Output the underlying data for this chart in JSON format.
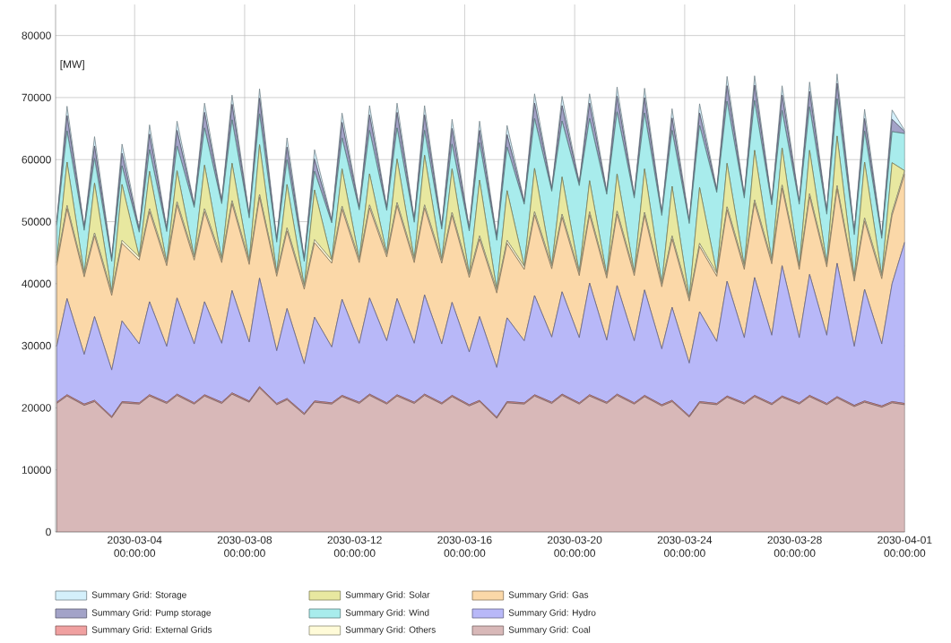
{
  "chart_data": {
    "type": "area",
    "stacked": true,
    "ylabel": "[MW]",
    "grid": true,
    "legend": "bottom",
    "xlim": [
      "2030-03-01T03:00",
      "2030-04-01T00:00"
    ],
    "ylim": [
      0,
      85000
    ],
    "yticks": [
      0,
      10000,
      20000,
      30000,
      40000,
      50000,
      60000,
      70000,
      80000
    ],
    "xticks": [
      {
        "value": "2030-03-04",
        "label": "2030-03-04 00:00:00"
      },
      {
        "value": "2030-03-08",
        "label": "2030-03-08 00:00:00"
      },
      {
        "value": "2030-03-12",
        "label": "2030-03-12 00:00:00"
      },
      {
        "value": "2030-03-16",
        "label": "2030-03-16 00:00:00"
      },
      {
        "value": "2030-03-20",
        "label": "2030-03-20 00:00:00"
      },
      {
        "value": "2030-03-24",
        "label": "2030-03-24 00:00:00"
      },
      {
        "value": "2030-03-28",
        "label": "2030-03-28 00:00:00"
      },
      {
        "value": "2030-04-01",
        "label": "2030-04-01 00:00:00"
      }
    ],
    "x": [
      "2030-03-01T04:00",
      "2030-03-01T13:00",
      "2030-03-02T04:00",
      "2030-03-02T13:00",
      "2030-03-03T04:00",
      "2030-03-03T13:00",
      "2030-03-04T04:00",
      "2030-03-04T13:00",
      "2030-03-05T04:00",
      "2030-03-05T13:00",
      "2030-03-06T04:00",
      "2030-03-06T13:00",
      "2030-03-07T04:00",
      "2030-03-07T13:00",
      "2030-03-08T04:00",
      "2030-03-08T13:00",
      "2030-03-09T04:00",
      "2030-03-09T13:00",
      "2030-03-10T04:00",
      "2030-03-10T13:00",
      "2030-03-11T04:00",
      "2030-03-11T13:00",
      "2030-03-12T04:00",
      "2030-03-12T13:00",
      "2030-03-13T04:00",
      "2030-03-13T13:00",
      "2030-03-14T04:00",
      "2030-03-14T13:00",
      "2030-03-15T04:00",
      "2030-03-15T13:00",
      "2030-03-16T04:00",
      "2030-03-16T13:00",
      "2030-03-17T04:00",
      "2030-03-17T13:00",
      "2030-03-18T04:00",
      "2030-03-18T13:00",
      "2030-03-19T04:00",
      "2030-03-19T13:00",
      "2030-03-20T04:00",
      "2030-03-20T13:00",
      "2030-03-21T04:00",
      "2030-03-21T13:00",
      "2030-03-22T04:00",
      "2030-03-22T13:00",
      "2030-03-23T04:00",
      "2030-03-23T13:00",
      "2030-03-24T04:00",
      "2030-03-24T13:00",
      "2030-03-25T04:00",
      "2030-03-25T13:00",
      "2030-03-26T04:00",
      "2030-03-26T13:00",
      "2030-03-27T04:00",
      "2030-03-27T13:00",
      "2030-03-28T04:00",
      "2030-03-28T13:00",
      "2030-03-29T04:00",
      "2030-03-29T13:00",
      "2030-03-30T04:00",
      "2030-03-30T13:00",
      "2030-03-31T04:00",
      "2030-03-31T13:00",
      "2030-04-01T00:00"
    ],
    "series": [
      {
        "name": "Summary Grid: Coal",
        "color": "#d8b8b8",
        "values": [
          20700,
          21900,
          20400,
          21000,
          18400,
          20800,
          20600,
          21900,
          20700,
          22000,
          20600,
          21900,
          20700,
          22200,
          20900,
          23200,
          20500,
          21300,
          18900,
          20900,
          20600,
          21800,
          20700,
          22000,
          20600,
          21900,
          20700,
          22000,
          20600,
          21800,
          20300,
          21000,
          18300,
          20800,
          20600,
          21900,
          20700,
          22000,
          20600,
          21900,
          20700,
          22000,
          20600,
          21800,
          20300,
          21000,
          18500,
          20800,
          20500,
          21700,
          20600,
          21800,
          20500,
          21700,
          20600,
          21800,
          20500,
          21600,
          20200,
          20900,
          20100,
          20800,
          20500
        ]
      },
      {
        "name": "Summary Grid: External Grids",
        "color": "#f0a0a0",
        "values": [
          200,
          200,
          200,
          200,
          200,
          200,
          200,
          200,
          200,
          200,
          200,
          200,
          200,
          200,
          200,
          200,
          200,
          200,
          200,
          200,
          200,
          200,
          200,
          200,
          200,
          200,
          200,
          200,
          200,
          200,
          200,
          200,
          200,
          200,
          200,
          200,
          200,
          200,
          200,
          200,
          200,
          200,
          200,
          200,
          200,
          200,
          200,
          200,
          200,
          200,
          200,
          200,
          200,
          200,
          200,
          200,
          200,
          200,
          200,
          200,
          200,
          200,
          200
        ]
      },
      {
        "name": "Summary Grid: Hydro",
        "color": "#b8b8f8",
        "values": [
          9000,
          15500,
          8000,
          13500,
          7500,
          13000,
          9500,
          15000,
          9000,
          15500,
          9500,
          15000,
          9500,
          16500,
          9500,
          17500,
          8500,
          14500,
          8000,
          13500,
          9000,
          15500,
          9500,
          15500,
          10000,
          15500,
          9500,
          16000,
          9500,
          15000,
          8500,
          13500,
          8000,
          13500,
          10000,
          16000,
          10500,
          16500,
          10500,
          18000,
          10000,
          17500,
          10000,
          17000,
          9000,
          15000,
          8500,
          14500,
          10000,
          18500,
          10500,
          19000,
          11000,
          21000,
          10500,
          19500,
          11000,
          21500,
          9500,
          18000,
          10000,
          19000,
          26000
        ]
      },
      {
        "name": "Summary Grid: Gas",
        "color": "#fbd8a8",
        "values": [
          13000,
          14500,
          12500,
          13000,
          12000,
          12500,
          13500,
          14500,
          13000,
          15000,
          13500,
          14500,
          13000,
          14000,
          12500,
          13000,
          12000,
          12500,
          12000,
          12000,
          13500,
          14500,
          13000,
          14500,
          13500,
          15000,
          13000,
          14000,
          13000,
          14000,
          12000,
          12500,
          12000,
          12000,
          11500,
          13000,
          11000,
          12000,
          10000,
          11000,
          10000,
          11500,
          10500,
          12000,
          10000,
          11000,
          10000,
          10500,
          10500,
          11500,
          11000,
          12000,
          11500,
          12500,
          11000,
          12500,
          11000,
          12000,
          10500,
          11000,
          10500,
          11000,
          11000
        ]
      },
      {
        "name": "Summary Grid: Others",
        "color": "#fffbd8",
        "values": [
          500,
          500,
          500,
          500,
          500,
          500,
          500,
          500,
          500,
          500,
          500,
          500,
          500,
          500,
          500,
          500,
          500,
          500,
          500,
          500,
          500,
          500,
          500,
          500,
          500,
          500,
          500,
          500,
          500,
          500,
          500,
          500,
          500,
          500,
          500,
          500,
          500,
          500,
          500,
          500,
          500,
          500,
          500,
          500,
          500,
          500,
          500,
          500,
          500,
          500,
          500,
          500,
          500,
          500,
          500,
          500,
          500,
          500,
          500,
          500,
          500,
          500,
          500
        ]
      },
      {
        "name": "Summary Grid: Solar",
        "color": "#e8e8a0",
        "values": [
          0,
          7000,
          0,
          8000,
          0,
          9000,
          0,
          6000,
          0,
          5000,
          0,
          7000,
          0,
          6000,
          0,
          8000,
          0,
          7000,
          0,
          8000,
          0,
          6000,
          0,
          5000,
          0,
          7000,
          0,
          8000,
          0,
          7000,
          0,
          9000,
          0,
          8000,
          0,
          7000,
          0,
          6000,
          0,
          5000,
          0,
          6000,
          0,
          7000,
          0,
          8000,
          0,
          9000,
          0,
          7000,
          0,
          8000,
          0,
          6000,
          0,
          7000,
          0,
          8000,
          0,
          9000,
          0,
          8000,
          0
        ]
      },
      {
        "name": "Summary Grid: Wind",
        "color": "#a8ecec",
        "values": [
          6000,
          5000,
          7000,
          4000,
          5000,
          3000,
          4000,
          3500,
          5000,
          4000,
          8000,
          6000,
          9000,
          7000,
          7000,
          5000,
          5000,
          4000,
          4000,
          3000,
          6000,
          5000,
          8000,
          7000,
          7000,
          5000,
          6000,
          4000,
          5000,
          4000,
          7000,
          6000,
          8000,
          7000,
          10000,
          8000,
          12000,
          9000,
          14000,
          10000,
          13000,
          10000,
          12000,
          9000,
          11000,
          9000,
          12000,
          10000,
          13000,
          10000,
          11000,
          8000,
          9000,
          6000,
          10000,
          7000,
          8000,
          6000,
          7000,
          5000,
          6000,
          5000,
          6000
        ]
      },
      {
        "name": "Summary Grid: Pump storage",
        "color": "#a3a3c8",
        "values": [
          300,
          2500,
          300,
          2000,
          300,
          2000,
          300,
          2500,
          300,
          2500,
          300,
          2500,
          300,
          2500,
          300,
          2500,
          300,
          2000,
          300,
          2000,
          300,
          2500,
          300,
          2500,
          300,
          2500,
          300,
          2500,
          300,
          2500,
          300,
          2000,
          300,
          2000,
          300,
          2500,
          300,
          2500,
          300,
          2500,
          300,
          2500,
          300,
          2500,
          300,
          2000,
          300,
          2000,
          300,
          2500,
          300,
          2500,
          300,
          2500,
          300,
          2500,
          300,
          2500,
          300,
          2000,
          300,
          2000,
          300
        ]
      },
      {
        "name": "Summary Grid: Storage",
        "color": "#d4f0fb",
        "values": [
          200,
          1500,
          200,
          1500,
          200,
          1500,
          200,
          1500,
          200,
          1500,
          200,
          1500,
          200,
          1500,
          200,
          1500,
          200,
          1500,
          200,
          1500,
          200,
          1500,
          200,
          1500,
          200,
          1500,
          200,
          1500,
          200,
          1500,
          200,
          1500,
          200,
          1500,
          200,
          1500,
          200,
          1500,
          200,
          1500,
          200,
          1500,
          200,
          1500,
          200,
          1500,
          200,
          1500,
          200,
          1500,
          200,
          1500,
          200,
          1500,
          200,
          1500,
          200,
          1500,
          200,
          1500,
          200,
          1500,
          200
        ]
      }
    ]
  }
}
